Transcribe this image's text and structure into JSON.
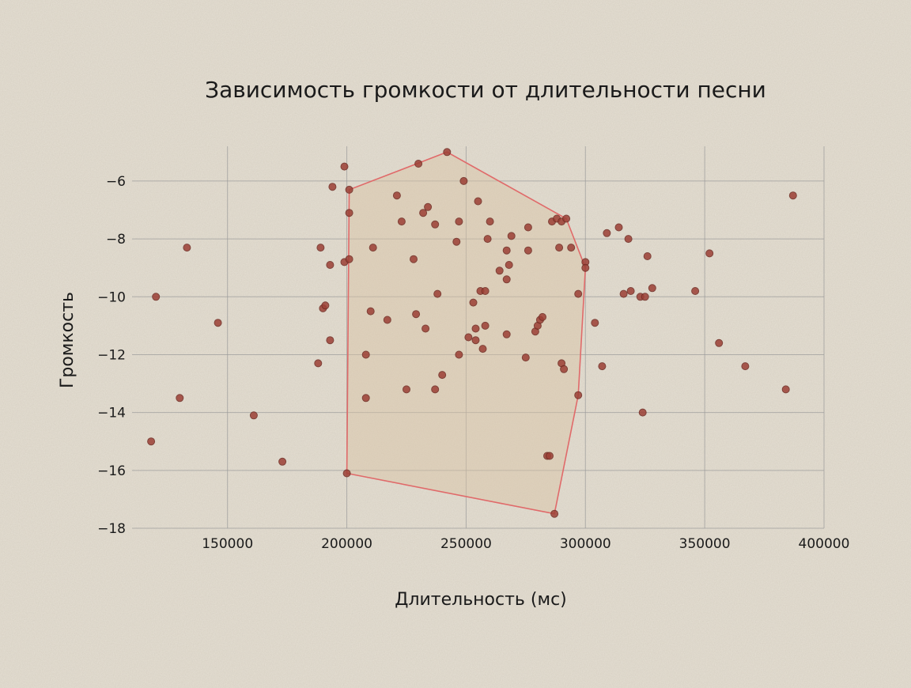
{
  "chart_data": {
    "type": "scatter",
    "title": "Зависимость громкости от длительности песни",
    "xlabel": "Длительность (мс)",
    "ylabel": "Громкость",
    "xlim": [
      110000,
      400000
    ],
    "ylim": [
      -18,
      -4.8
    ],
    "xticks": [
      150000,
      200000,
      250000,
      300000,
      350000,
      400000
    ],
    "yticks": [
      -6,
      -8,
      -10,
      -12,
      -14,
      -16,
      -18
    ],
    "grid": true,
    "colors": {
      "point": "#9c3f35",
      "hull_fill": "#d9c4a4",
      "hull_stroke": "#e06a6a",
      "background": "#e6e0d4"
    },
    "points": [
      {
        "x": 118000,
        "y": -15.0
      },
      {
        "x": 120000,
        "y": -10.0
      },
      {
        "x": 130000,
        "y": -13.5
      },
      {
        "x": 133000,
        "y": -8.3
      },
      {
        "x": 146000,
        "y": -10.9
      },
      {
        "x": 161000,
        "y": -14.1
      },
      {
        "x": 173000,
        "y": -15.7
      },
      {
        "x": 188000,
        "y": -12.3
      },
      {
        "x": 189000,
        "y": -8.3
      },
      {
        "x": 190000,
        "y": -10.4
      },
      {
        "x": 191000,
        "y": -10.3
      },
      {
        "x": 193000,
        "y": -8.9
      },
      {
        "x": 193000,
        "y": -11.5
      },
      {
        "x": 194000,
        "y": -6.2
      },
      {
        "x": 199000,
        "y": -5.5
      },
      {
        "x": 199000,
        "y": -8.8
      },
      {
        "x": 200000,
        "y": -16.1
      },
      {
        "x": 201000,
        "y": -7.1
      },
      {
        "x": 201000,
        "y": -6.3
      },
      {
        "x": 201000,
        "y": -8.7
      },
      {
        "x": 208000,
        "y": -12.0
      },
      {
        "x": 208000,
        "y": -13.5
      },
      {
        "x": 210000,
        "y": -10.5
      },
      {
        "x": 211000,
        "y": -8.3
      },
      {
        "x": 217000,
        "y": -10.8
      },
      {
        "x": 221000,
        "y": -6.5
      },
      {
        "x": 223000,
        "y": -7.4
      },
      {
        "x": 225000,
        "y": -13.2
      },
      {
        "x": 228000,
        "y": -8.7
      },
      {
        "x": 229000,
        "y": -10.6
      },
      {
        "x": 230000,
        "y": -5.4
      },
      {
        "x": 232000,
        "y": -7.1
      },
      {
        "x": 233000,
        "y": -11.1
      },
      {
        "x": 234000,
        "y": -6.9
      },
      {
        "x": 237000,
        "y": -7.5
      },
      {
        "x": 237000,
        "y": -13.2
      },
      {
        "x": 238000,
        "y": -9.9
      },
      {
        "x": 240000,
        "y": -12.7
      },
      {
        "x": 242000,
        "y": -5.0
      },
      {
        "x": 246000,
        "y": -8.1
      },
      {
        "x": 247000,
        "y": -7.4
      },
      {
        "x": 247000,
        "y": -12.0
      },
      {
        "x": 249000,
        "y": -6.0
      },
      {
        "x": 251000,
        "y": -11.4
      },
      {
        "x": 253000,
        "y": -10.2
      },
      {
        "x": 254000,
        "y": -11.1
      },
      {
        "x": 254000,
        "y": -11.5
      },
      {
        "x": 255000,
        "y": -6.7
      },
      {
        "x": 256000,
        "y": -9.8
      },
      {
        "x": 257000,
        "y": -11.8
      },
      {
        "x": 258000,
        "y": -11.0
      },
      {
        "x": 258000,
        "y": -9.8
      },
      {
        "x": 259000,
        "y": -8.0
      },
      {
        "x": 260000,
        "y": -7.4
      },
      {
        "x": 264000,
        "y": -9.1
      },
      {
        "x": 267000,
        "y": -8.4
      },
      {
        "x": 267000,
        "y": -9.4
      },
      {
        "x": 267000,
        "y": -11.3
      },
      {
        "x": 268000,
        "y": -8.9
      },
      {
        "x": 269000,
        "y": -7.9
      },
      {
        "x": 275000,
        "y": -12.1
      },
      {
        "x": 276000,
        "y": -8.4
      },
      {
        "x": 276000,
        "y": -7.6
      },
      {
        "x": 279000,
        "y": -11.2
      },
      {
        "x": 280000,
        "y": -11.0
      },
      {
        "x": 281000,
        "y": -10.8
      },
      {
        "x": 282000,
        "y": -10.7
      },
      {
        "x": 284000,
        "y": -15.5
      },
      {
        "x": 285000,
        "y": -15.5
      },
      {
        "x": 286000,
        "y": -7.4
      },
      {
        "x": 287000,
        "y": -17.5
      },
      {
        "x": 288000,
        "y": -7.3
      },
      {
        "x": 289000,
        "y": -8.3
      },
      {
        "x": 290000,
        "y": -7.4
      },
      {
        "x": 290000,
        "y": -12.3
      },
      {
        "x": 291000,
        "y": -12.5
      },
      {
        "x": 292000,
        "y": -7.3
      },
      {
        "x": 294000,
        "y": -8.3
      },
      {
        "x": 297000,
        "y": -13.4
      },
      {
        "x": 297000,
        "y": -9.9
      },
      {
        "x": 300000,
        "y": -8.8
      },
      {
        "x": 300000,
        "y": -9.0
      },
      {
        "x": 304000,
        "y": -10.9
      },
      {
        "x": 307000,
        "y": -12.4
      },
      {
        "x": 309000,
        "y": -7.8
      },
      {
        "x": 314000,
        "y": -7.6
      },
      {
        "x": 316000,
        "y": -9.9
      },
      {
        "x": 318000,
        "y": -8.0
      },
      {
        "x": 319000,
        "y": -9.8
      },
      {
        "x": 323000,
        "y": -10.0
      },
      {
        "x": 324000,
        "y": -14.0
      },
      {
        "x": 325000,
        "y": -10.0
      },
      {
        "x": 326000,
        "y": -8.6
      },
      {
        "x": 328000,
        "y": -9.7
      },
      {
        "x": 346000,
        "y": -9.8
      },
      {
        "x": 352000,
        "y": -8.5
      },
      {
        "x": 356000,
        "y": -11.6
      },
      {
        "x": 367000,
        "y": -12.4
      },
      {
        "x": 384000,
        "y": -13.2
      },
      {
        "x": 387000,
        "y": -6.5
      }
    ],
    "hull": [
      {
        "x": 200000,
        "y": -16.1
      },
      {
        "x": 201000,
        "y": -6.3
      },
      {
        "x": 242000,
        "y": -5.0
      },
      {
        "x": 292000,
        "y": -7.3
      },
      {
        "x": 300000,
        "y": -9.0
      },
      {
        "x": 297000,
        "y": -13.4
      },
      {
        "x": 287000,
        "y": -17.5
      }
    ]
  }
}
